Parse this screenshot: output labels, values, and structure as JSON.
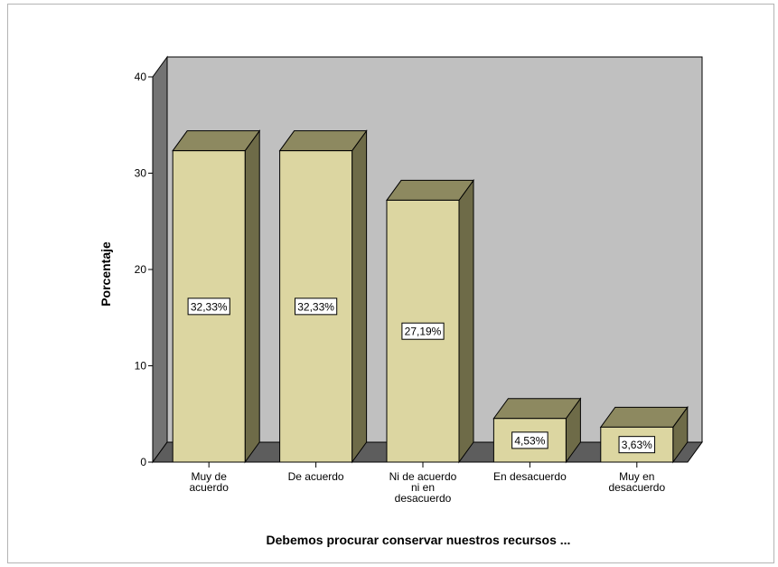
{
  "chart_data": {
    "type": "bar",
    "style": "3d",
    "categories": [
      [
        "Muy de",
        "acuerdo"
      ],
      [
        "De acuerdo"
      ],
      [
        "Ni de acuerdo",
        "ni en",
        "desacuerdo"
      ],
      [
        "En desacuerdo"
      ],
      [
        "Muy en",
        "desacuerdo"
      ]
    ],
    "values": [
      32.33,
      32.33,
      27.19,
      4.53,
      3.63
    ],
    "data_labels": [
      "32,33%",
      "32,33%",
      "27,19%",
      "4,53%",
      "3,63%"
    ],
    "xlabel": "Debemos procurar conservar nuestros recursos ...",
    "ylabel": "Porcentaje",
    "ylim": [
      0,
      40
    ],
    "yticks": [
      0,
      10,
      20,
      30,
      40
    ],
    "grid": false,
    "colors": {
      "bar_front": "#dcd6a1",
      "bar_top": "#8d8960",
      "bar_side": "#6e6b48",
      "back_wall": "#c0c0c0",
      "side_wall": "#737373",
      "floor": "#5d5d5d"
    }
  }
}
